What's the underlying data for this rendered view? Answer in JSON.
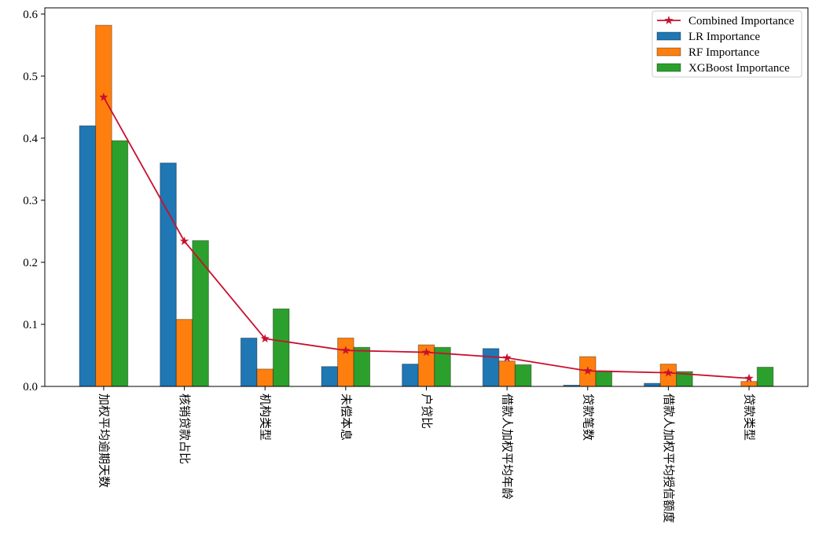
{
  "chart_data": {
    "type": "bar",
    "categories": [
      "加权平均逾期天数",
      "核销贷款占比",
      "机构类型",
      "未偿本息",
      "户贷比",
      "借款人加权平均年龄",
      "贷款笔数",
      "借款人加权平均授信额度",
      "贷款类型"
    ],
    "series": [
      {
        "name": "LR Importance",
        "color": "#1f77b4",
        "values": [
          0.42,
          0.36,
          0.078,
          0.032,
          0.036,
          0.061,
          0.002,
          0.005,
          0.0
        ]
      },
      {
        "name": "RF Importance",
        "color": "#ff7f0e",
        "values": [
          0.582,
          0.108,
          0.028,
          0.078,
          0.067,
          0.041,
          0.048,
          0.036,
          0.008
        ]
      },
      {
        "name": "XGBoost Importance",
        "color": "#2ca02c",
        "values": [
          0.396,
          0.235,
          0.125,
          0.063,
          0.063,
          0.035,
          0.025,
          0.024,
          0.031
        ]
      },
      {
        "name": "Combined Importance",
        "color": "#c8102e",
        "type": "line",
        "marker": "star",
        "values": [
          0.466,
          0.234,
          0.077,
          0.058,
          0.055,
          0.046,
          0.025,
          0.022,
          0.013
        ]
      }
    ],
    "ylim": [
      0,
      0.61
    ],
    "yticks": [
      {
        "value": 0,
        "label": "0.0"
      },
      0.1,
      0.2,
      0.3,
      0.4,
      0.5,
      0.6
    ],
    "legend": "upper right"
  }
}
